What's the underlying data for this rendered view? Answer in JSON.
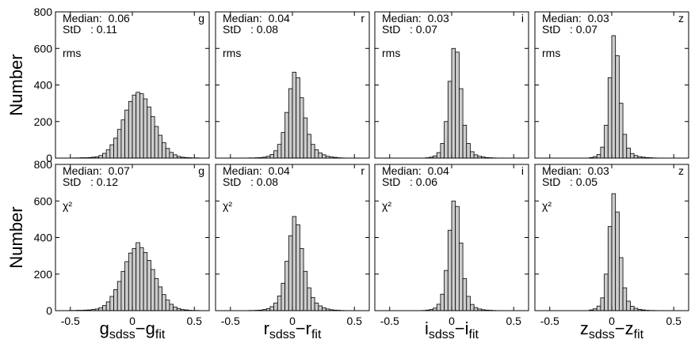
{
  "chart_data": [
    {
      "type": "histogram",
      "ylabel": "Number",
      "median_text": "Median:  0.06",
      "std_text": "StD   : 0.11",
      "band": "g",
      "method": "rms",
      "bins": [
        -0.6,
        -0.57,
        -0.54,
        -0.51,
        -0.48,
        -0.45,
        -0.42,
        -0.39,
        -0.36,
        -0.33,
        -0.3,
        -0.27,
        -0.24,
        -0.21,
        -0.18,
        -0.15,
        -0.12,
        -0.09,
        -0.06,
        -0.03,
        0,
        0.03,
        0.06,
        0.09,
        0.12,
        0.15,
        0.18,
        0.21,
        0.24,
        0.27,
        0.3,
        0.33,
        0.36,
        0.39,
        0.42,
        0.45,
        0.48,
        0.51,
        0.54,
        0.57,
        0.6
      ],
      "counts": [
        0,
        0,
        0,
        0,
        1,
        1,
        2,
        2,
        3,
        5,
        7,
        14,
        26,
        45,
        73,
        109,
        157,
        209,
        263,
        310,
        345,
        360,
        352,
        324,
        280,
        227,
        173,
        125,
        84,
        53,
        31,
        18,
        9,
        5,
        3,
        2,
        1,
        1,
        0,
        0
      ],
      "color": "#cccccc",
      "xlim": [
        -0.62,
        0.62
      ],
      "ylim": [
        0,
        800
      ],
      "xticks": [
        -0.5,
        0,
        0.5
      ],
      "yticks": [
        0,
        200,
        400,
        600,
        800
      ]
    },
    {
      "type": "histogram",
      "median_text": "Median:  0.04",
      "std_text": "StD   : 0.08",
      "band": "r",
      "method": "rms",
      "bins": [
        -0.6,
        -0.57,
        -0.54,
        -0.51,
        -0.48,
        -0.45,
        -0.42,
        -0.39,
        -0.36,
        -0.33,
        -0.3,
        -0.27,
        -0.24,
        -0.21,
        -0.18,
        -0.15,
        -0.12,
        -0.09,
        -0.06,
        -0.03,
        0,
        0.03,
        0.06,
        0.09,
        0.12,
        0.15,
        0.18,
        0.21,
        0.24,
        0.27,
        0.3,
        0.33,
        0.36,
        0.39,
        0.42,
        0.45,
        0.48,
        0.51,
        0.54,
        0.57,
        0.6
      ],
      "counts": [
        0,
        0,
        0,
        0,
        0,
        0,
        0,
        0,
        1,
        1,
        2,
        3,
        5,
        10,
        20,
        40,
        75,
        140,
        250,
        380,
        470,
        440,
        330,
        220,
        130,
        75,
        45,
        28,
        18,
        10,
        6,
        4,
        2,
        1,
        0,
        0,
        0,
        0,
        0,
        0
      ],
      "color": "#cccccc",
      "xlim": [
        -0.62,
        0.62
      ],
      "ylim": [
        0,
        800
      ],
      "xticks": [
        -0.5,
        0,
        0.5
      ],
      "yticks": [
        0,
        200,
        400,
        600,
        800
      ]
    },
    {
      "type": "histogram",
      "median_text": "Median:  0.03",
      "std_text": "StD   : 0.07",
      "band": "i",
      "method": "rms",
      "bins": [
        -0.6,
        -0.57,
        -0.54,
        -0.51,
        -0.48,
        -0.45,
        -0.42,
        -0.39,
        -0.36,
        -0.33,
        -0.3,
        -0.27,
        -0.24,
        -0.21,
        -0.18,
        -0.15,
        -0.12,
        -0.09,
        -0.06,
        -0.03,
        0,
        0.03,
        0.06,
        0.09,
        0.12,
        0.15,
        0.18,
        0.21,
        0.24,
        0.27,
        0.3,
        0.33,
        0.36,
        0.39,
        0.42,
        0.45,
        0.48,
        0.51,
        0.54,
        0.57,
        0.6
      ],
      "counts": [
        0,
        0,
        0,
        0,
        0,
        0,
        0,
        0,
        0,
        0,
        0,
        0,
        0,
        2,
        5,
        12,
        30,
        80,
        200,
        420,
        600,
        580,
        380,
        180,
        80,
        35,
        18,
        10,
        6,
        3,
        2,
        1,
        0,
        0,
        0,
        0,
        0,
        0,
        0,
        0
      ],
      "color": "#cccccc",
      "xlim": [
        -0.62,
        0.62
      ],
      "ylim": [
        0,
        800
      ],
      "xticks": [
        -0.5,
        0,
        0.5
      ],
      "yticks": [
        0,
        200,
        400,
        600,
        800
      ]
    },
    {
      "type": "histogram",
      "median_text": "Median:  0.03",
      "std_text": "StD   : 0.07",
      "band": "z",
      "method": "rms",
      "bins": [
        -0.6,
        -0.57,
        -0.54,
        -0.51,
        -0.48,
        -0.45,
        -0.42,
        -0.39,
        -0.36,
        -0.33,
        -0.3,
        -0.27,
        -0.24,
        -0.21,
        -0.18,
        -0.15,
        -0.12,
        -0.09,
        -0.06,
        -0.03,
        0,
        0.03,
        0.06,
        0.09,
        0.12,
        0.15,
        0.18,
        0.21,
        0.24,
        0.27,
        0.3,
        0.33,
        0.36,
        0.39,
        0.42,
        0.45,
        0.48,
        0.51,
        0.54,
        0.57,
        0.6
      ],
      "counts": [
        0,
        0,
        0,
        0,
        0,
        0,
        0,
        0,
        0,
        0,
        0,
        0,
        0,
        0,
        3,
        8,
        20,
        60,
        180,
        440,
        670,
        560,
        300,
        130,
        55,
        25,
        14,
        8,
        5,
        3,
        2,
        1,
        0,
        0,
        0,
        0,
        0,
        0,
        0,
        0
      ],
      "color": "#cccccc",
      "xlim": [
        -0.62,
        0.62
      ],
      "ylim": [
        0,
        800
      ],
      "xticks": [
        -0.5,
        0,
        0.5
      ],
      "yticks": [
        0,
        200,
        400,
        600,
        800
      ]
    },
    {
      "type": "histogram",
      "ylabel": "Number",
      "xlabel": [
        "g",
        "sdss",
        "−g",
        "fit"
      ],
      "median_text": "Median:  0.07",
      "std_text": "StD   : 0.12",
      "band": "g",
      "method": "χ²",
      "bins": [
        -0.6,
        -0.57,
        -0.54,
        -0.51,
        -0.48,
        -0.45,
        -0.42,
        -0.39,
        -0.36,
        -0.33,
        -0.3,
        -0.27,
        -0.24,
        -0.21,
        -0.18,
        -0.15,
        -0.12,
        -0.09,
        -0.06,
        -0.03,
        0,
        0.03,
        0.06,
        0.09,
        0.12,
        0.15,
        0.18,
        0.21,
        0.24,
        0.27,
        0.3,
        0.33,
        0.36,
        0.39,
        0.42,
        0.45,
        0.48,
        0.51,
        0.54,
        0.57,
        0.6
      ],
      "counts": [
        0,
        0,
        0,
        1,
        1,
        2,
        2,
        3,
        4,
        6,
        9,
        16,
        28,
        48,
        78,
        115,
        160,
        215,
        268,
        315,
        340,
        372,
        345,
        318,
        275,
        225,
        175,
        130,
        88,
        58,
        35,
        20,
        11,
        6,
        4,
        2,
        1,
        1,
        0,
        0
      ],
      "color": "#cccccc",
      "xlim": [
        -0.62,
        0.62
      ],
      "ylim": [
        0,
        800
      ],
      "xticks": [
        -0.5,
        0,
        0.5
      ],
      "yticks": [
        0,
        200,
        400,
        600,
        800
      ]
    },
    {
      "type": "histogram",
      "xlabel": [
        "r",
        "sdss",
        "−r",
        "fit"
      ],
      "median_text": "Median:  0.04",
      "std_text": "StD   : 0.08",
      "band": "r",
      "method": "χ²",
      "bins": [
        -0.6,
        -0.57,
        -0.54,
        -0.51,
        -0.48,
        -0.45,
        -0.42,
        -0.39,
        -0.36,
        -0.33,
        -0.3,
        -0.27,
        -0.24,
        -0.21,
        -0.18,
        -0.15,
        -0.12,
        -0.09,
        -0.06,
        -0.03,
        0,
        0.03,
        0.06,
        0.09,
        0.12,
        0.15,
        0.18,
        0.21,
        0.24,
        0.27,
        0.3,
        0.33,
        0.36,
        0.39,
        0.42,
        0.45,
        0.48,
        0.51,
        0.54,
        0.57,
        0.6
      ],
      "counts": [
        0,
        0,
        0,
        0,
        0,
        0,
        0,
        0,
        1,
        1,
        2,
        3,
        6,
        11,
        22,
        42,
        80,
        150,
        270,
        410,
        515,
        470,
        340,
        215,
        125,
        72,
        42,
        26,
        16,
        9,
        5,
        3,
        2,
        1,
        0,
        0,
        0,
        0,
        0,
        0
      ],
      "color": "#cccccc",
      "xlim": [
        -0.62,
        0.62
      ],
      "ylim": [
        0,
        800
      ],
      "xticks": [
        -0.5,
        0,
        0.5
      ],
      "yticks": [
        0,
        200,
        400,
        600,
        800
      ]
    },
    {
      "type": "histogram",
      "xlabel": [
        "i",
        "sdss",
        "−i",
        "fit"
      ],
      "median_text": "Median:  0.04",
      "std_text": "StD   : 0.06",
      "band": "i",
      "method": "χ²",
      "bins": [
        -0.6,
        -0.57,
        -0.54,
        -0.51,
        -0.48,
        -0.45,
        -0.42,
        -0.39,
        -0.36,
        -0.33,
        -0.3,
        -0.27,
        -0.24,
        -0.21,
        -0.18,
        -0.15,
        -0.12,
        -0.09,
        -0.06,
        -0.03,
        0,
        0.03,
        0.06,
        0.09,
        0.12,
        0.15,
        0.18,
        0.21,
        0.24,
        0.27,
        0.3,
        0.33,
        0.36,
        0.39,
        0.42,
        0.45,
        0.48,
        0.51,
        0.54,
        0.57,
        0.6
      ],
      "counts": [
        0,
        0,
        0,
        0,
        0,
        0,
        0,
        0,
        0,
        0,
        0,
        0,
        1,
        3,
        6,
        14,
        35,
        90,
        220,
        440,
        600,
        570,
        370,
        175,
        78,
        34,
        17,
        9,
        5,
        3,
        2,
        1,
        0,
        0,
        0,
        0,
        0,
        0,
        0,
        0
      ],
      "color": "#cccccc",
      "xlim": [
        -0.62,
        0.62
      ],
      "ylim": [
        0,
        800
      ],
      "xticks": [
        -0.5,
        0,
        0.5
      ],
      "yticks": [
        0,
        200,
        400,
        600,
        800
      ]
    },
    {
      "type": "histogram",
      "xlabel": [
        "z",
        "sdss",
        "−z",
        "fit"
      ],
      "median_text": "Median:  0.03",
      "std_text": "StD   : 0.05",
      "band": "z",
      "method": "χ²",
      "bins": [
        -0.6,
        -0.57,
        -0.54,
        -0.51,
        -0.48,
        -0.45,
        -0.42,
        -0.39,
        -0.36,
        -0.33,
        -0.3,
        -0.27,
        -0.24,
        -0.21,
        -0.18,
        -0.15,
        -0.12,
        -0.09,
        -0.06,
        -0.03,
        0,
        0.03,
        0.06,
        0.09,
        0.12,
        0.15,
        0.18,
        0.21,
        0.24,
        0.27,
        0.3,
        0.33,
        0.36,
        0.39,
        0.42,
        0.45,
        0.48,
        0.51,
        0.54,
        0.57,
        0.6
      ],
      "counts": [
        0,
        0,
        0,
        0,
        0,
        0,
        0,
        0,
        0,
        0,
        0,
        0,
        0,
        0,
        4,
        10,
        25,
        70,
        200,
        460,
        640,
        540,
        290,
        125,
        52,
        24,
        13,
        7,
        4,
        2,
        1,
        1,
        0,
        0,
        0,
        0,
        0,
        0,
        0,
        0
      ],
      "color": "#cccccc",
      "xlim": [
        -0.62,
        0.62
      ],
      "ylim": [
        0,
        800
      ],
      "xticks": [
        -0.5,
        0,
        0.5
      ],
      "yticks": [
        0,
        200,
        400,
        600,
        800
      ]
    }
  ]
}
